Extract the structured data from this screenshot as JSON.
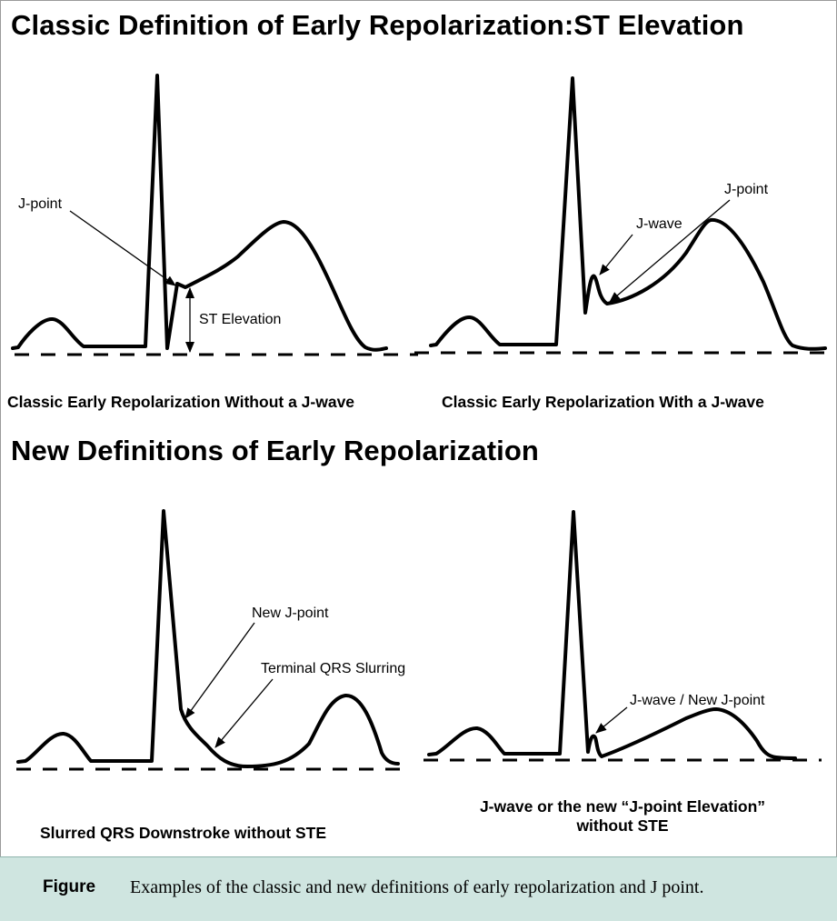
{
  "top": {
    "heading": "Classic Definition of Early Repolarization:ST Elevation",
    "left_panel": {
      "caption": "Classic Early Repolarization  Without a J-wave",
      "labels": {
        "j_point": "J-point",
        "st_elevation": "ST Elevation"
      }
    },
    "right_panel": {
      "caption": "Classic Early Repolarization With a J-wave",
      "labels": {
        "j_point": "J-point",
        "j_wave": "J-wave"
      }
    }
  },
  "bottom": {
    "heading": "New Definitions of Early Repolarization",
    "left_panel": {
      "caption": "Slurred QRS Downstroke without STE",
      "labels": {
        "new_j_point": "New J-point",
        "terminal_qrs_slurring": "Terminal QRS Slurring"
      }
    },
    "right_panel": {
      "caption_line1": "J-wave or the new “J-point Elevation”",
      "caption_line2": "without STE",
      "labels": {
        "j_wave_new_j_point": "J-wave / New J-point"
      }
    }
  },
  "figure": {
    "label": "Figure",
    "text": "Examples of the classic and new definitions of early repolarization and J point."
  },
  "colors": {
    "caption_bar": "#cfe5e0",
    "trace": "#000000"
  }
}
